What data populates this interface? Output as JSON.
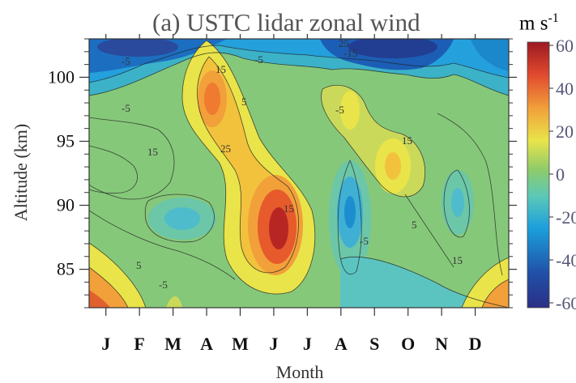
{
  "chart_data": {
    "type": "heatmap",
    "title": "(a) USTC lidar zonal wind",
    "xlabel": "Month",
    "ylabel": "Altitude (km)",
    "x_categories": [
      "J",
      "F",
      "M",
      "A",
      "M",
      "J",
      "J",
      "A",
      "S",
      "O",
      "N",
      "D"
    ],
    "y_ticks": [
      85,
      90,
      95,
      100
    ],
    "ylim": [
      82,
      103
    ],
    "colorbar": {
      "unit": "m s",
      "unit_exponent": "-1",
      "ticks": [
        60,
        40,
        20,
        0,
        -20,
        -40,
        -60
      ],
      "range": [
        -60,
        60
      ],
      "colormap": [
        "#2b2f86",
        "#2050a8",
        "#1ca0dc",
        "#5cc8b8",
        "#8ecb6a",
        "#e9e44a",
        "#f2a03a",
        "#e0482e",
        "#9c1a22"
      ]
    },
    "contour_labels": [
      "-5",
      "15",
      "-5",
      "-5",
      "15",
      "5",
      "25",
      "15",
      "-5",
      "-5",
      "5",
      "15",
      "5",
      "-5",
      "15",
      "-15",
      "25"
    ],
    "approx_features": [
      {
        "region": "westward jet near top (100-103 km), Jan-Feb",
        "value": -40
      },
      {
        "region": "westward jet near top (100-103 km), Aug-Oct",
        "value": -45
      },
      {
        "region": "eastward maximum at ~98 km, April",
        "value": 35
      },
      {
        "region": "eastward maximum at ~88 km, June",
        "value": 55
      },
      {
        "region": "eastward maximum at ~97 km, August",
        "value": 20
      },
      {
        "region": "eastward maximum at ~93 km, September",
        "value": 25
      },
      {
        "region": "westward minimum at ~89 km, March",
        "value": -15
      },
      {
        "region": "westward minimum at ~89 km, August",
        "value": -20
      },
      {
        "region": "westward minimum at ~90 km, November",
        "value": -15
      },
      {
        "region": "eastward near bottom (82-85 km), Jan and Dec",
        "value": 30
      }
    ]
  }
}
